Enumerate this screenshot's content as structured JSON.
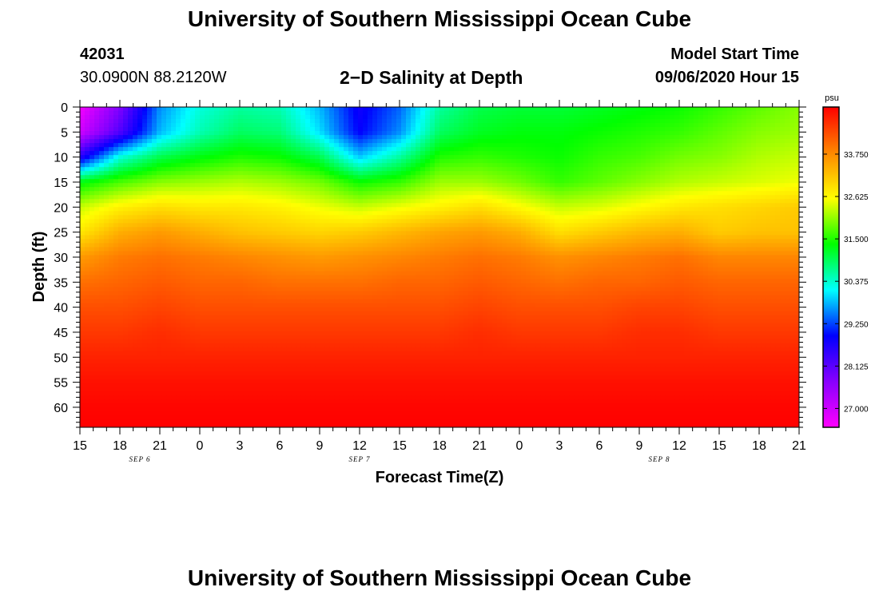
{
  "page": {
    "title_top": "University of Southern Mississippi Ocean Cube",
    "title_bottom": "University of Southern Mississippi Ocean Cube",
    "station_id": "42031",
    "station_coords": "30.0900N 88.2120W",
    "plot_title": "2−D Salinity at Depth",
    "model_start_label": "Model Start Time",
    "model_start_value": "09/06/2020 Hour 15"
  },
  "chart_data": {
    "type": "heatmap",
    "title": "2−D Salinity at Depth",
    "xlabel": "Forecast Time(Z)",
    "ylabel": "Depth (ft)",
    "x_ticks": [
      "15",
      "18",
      "21",
      "0",
      "3",
      "6",
      "9",
      "12",
      "15",
      "18",
      "21",
      "0",
      "3",
      "6",
      "9",
      "12",
      "15",
      "18",
      "21"
    ],
    "x_hours": [
      0,
      54
    ],
    "date_labels": [
      {
        "text": "SEP 6",
        "hour": 4.5
      },
      {
        "text": "SEP 7",
        "hour": 21
      },
      {
        "text": "SEP 8",
        "hour": 43.5
      }
    ],
    "y_ticks": [
      0,
      5,
      10,
      15,
      20,
      25,
      30,
      35,
      40,
      45,
      50,
      55,
      60
    ],
    "ylim": [
      0,
      64
    ],
    "colorbar": {
      "unit": "psu",
      "min": 26.5,
      "max": 35.0,
      "tick_values": [
        27.0,
        28.125,
        29.25,
        30.375,
        31.5,
        32.625,
        33.75
      ],
      "tick_labels": [
        "27.000",
        "28.125",
        "29.250",
        "30.375",
        "31.500",
        "32.625",
        "33.750"
      ],
      "colors": [
        "#ff00ff",
        "#8800ff",
        "#0000ff",
        "#00ffff",
        "#00ff00",
        "#ffff00",
        "#ff8800",
        "#ff0000"
      ]
    },
    "forecast_hours": [
      0,
      3,
      6,
      9,
      12,
      15,
      18,
      21,
      24,
      27,
      30,
      33,
      36,
      39,
      42,
      45,
      48,
      51,
      54
    ],
    "depths_ft": [
      0,
      5,
      10,
      15,
      20,
      25,
      30,
      35,
      40,
      45,
      50,
      55,
      60,
      64
    ],
    "salinity_psu": [
      [
        26.6,
        27.8,
        29.6,
        30.3,
        30.6,
        30.5,
        29.8,
        28.8,
        29.4,
        30.6,
        31.0,
        31.1,
        31.1,
        31.2,
        31.3,
        31.4,
        31.6,
        31.8,
        32.0
      ],
      [
        27.0,
        28.2,
        29.8,
        30.5,
        30.9,
        30.8,
        30.0,
        28.9,
        29.6,
        30.9,
        31.2,
        31.3,
        31.3,
        31.4,
        31.5,
        31.6,
        31.8,
        32.0,
        32.1
      ],
      [
        28.6,
        30.3,
        31.0,
        31.3,
        31.5,
        31.4,
        31.0,
        29.9,
        30.6,
        31.5,
        31.6,
        31.5,
        31.4,
        31.6,
        31.7,
        31.9,
        32.0,
        32.2,
        32.3
      ],
      [
        31.3,
        31.7,
        32.0,
        32.1,
        32.2,
        32.1,
        31.9,
        31.4,
        31.6,
        32.1,
        32.1,
        31.9,
        31.6,
        31.8,
        32.0,
        32.2,
        32.3,
        32.4,
        32.5
      ],
      [
        32.3,
        32.7,
        32.9,
        32.8,
        32.8,
        32.7,
        32.5,
        32.3,
        32.5,
        32.7,
        32.9,
        32.6,
        32.3,
        32.4,
        32.6,
        32.8,
        32.9,
        33.0,
        33.1
      ],
      [
        32.8,
        33.4,
        33.6,
        33.4,
        33.2,
        33.1,
        33.0,
        33.1,
        33.3,
        33.5,
        33.6,
        33.4,
        32.9,
        33.1,
        33.3,
        33.4,
        33.1,
        33.2,
        33.2
      ],
      [
        33.6,
        33.9,
        34.0,
        33.9,
        33.8,
        33.7,
        33.6,
        33.7,
        33.8,
        33.9,
        34.0,
        33.9,
        33.7,
        33.8,
        33.9,
        34.0,
        33.8,
        33.8,
        33.8
      ],
      [
        34.0,
        34.1,
        34.2,
        34.1,
        34.1,
        34.0,
        34.0,
        34.0,
        34.1,
        34.1,
        34.2,
        34.1,
        34.0,
        34.1,
        34.1,
        34.2,
        34.1,
        34.1,
        34.1
      ],
      [
        34.3,
        34.3,
        34.4,
        34.3,
        34.3,
        34.3,
        34.3,
        34.3,
        34.3,
        34.3,
        34.4,
        34.3,
        34.3,
        34.3,
        34.4,
        34.4,
        34.3,
        34.3,
        34.3
      ],
      [
        34.5,
        34.5,
        34.6,
        34.5,
        34.5,
        34.5,
        34.5,
        34.5,
        34.5,
        34.5,
        34.6,
        34.5,
        34.5,
        34.5,
        34.6,
        34.6,
        34.5,
        34.5,
        34.5
      ],
      [
        34.7,
        34.7,
        34.7,
        34.7,
        34.7,
        34.7,
        34.7,
        34.7,
        34.7,
        34.7,
        34.7,
        34.7,
        34.7,
        34.7,
        34.7,
        34.7,
        34.7,
        34.7,
        34.7
      ],
      [
        34.85,
        34.85,
        34.85,
        34.85,
        34.85,
        34.85,
        34.85,
        34.85,
        34.85,
        34.85,
        34.85,
        34.85,
        34.85,
        34.85,
        34.85,
        34.85,
        34.85,
        34.85,
        34.85
      ],
      [
        34.95,
        34.95,
        34.95,
        34.95,
        34.95,
        34.95,
        34.95,
        34.95,
        34.95,
        34.95,
        34.95,
        34.95,
        34.95,
        34.95,
        34.95,
        34.95,
        34.95,
        34.95,
        34.95
      ],
      [
        35.0,
        35.0,
        35.0,
        35.0,
        35.0,
        35.0,
        35.0,
        35.0,
        35.0,
        35.0,
        35.0,
        35.0,
        35.0,
        35.0,
        35.0,
        35.0,
        35.0,
        35.0,
        35.0
      ]
    ]
  }
}
